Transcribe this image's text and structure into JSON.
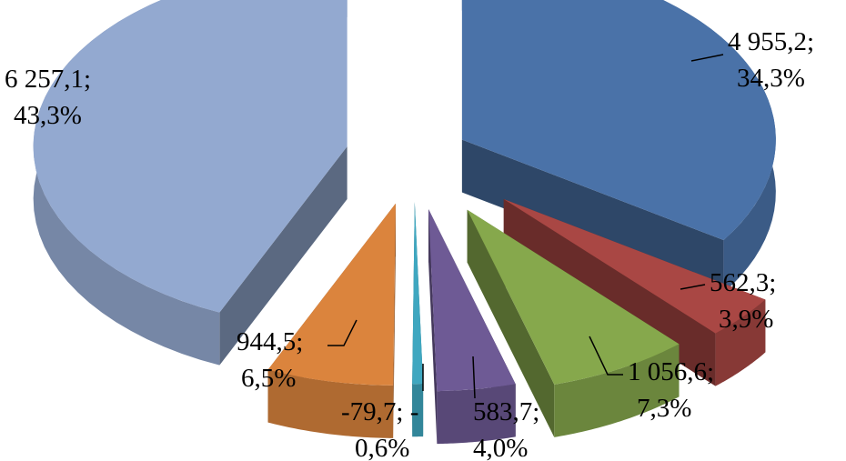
{
  "chart_data": {
    "type": "pie",
    "title": "",
    "legend": "none",
    "slices": [
      {
        "value": 4955.2,
        "percent": 34.3,
        "label_value": "4 955,2;",
        "label_percent": "34,3%",
        "color": "#4A72A8"
      },
      {
        "value": 562.3,
        "percent": 3.9,
        "label_value": "562,3;",
        "label_percent": "3,9%",
        "color": "#A94744"
      },
      {
        "value": 1056.6,
        "percent": 7.3,
        "label_value": "1 056,6;",
        "label_percent": "7,3%",
        "color": "#86A84C"
      },
      {
        "value": 583.7,
        "percent": 4.0,
        "label_value": "583,7;",
        "label_percent": "4,0%",
        "color": "#6E5A95"
      },
      {
        "value": -79.7,
        "percent": -0.6,
        "label_value": "-79,7; -",
        "label_percent": "0,6%",
        "color": "#3FA7C0"
      },
      {
        "value": 944.5,
        "percent": 6.5,
        "label_value": "944,5;",
        "label_percent": "6,5%",
        "color": "#DB843D"
      },
      {
        "value": 6257.1,
        "percent": 43.3,
        "label_value": "6 257,1;",
        "label_percent": "43,3%",
        "color": "#93A9D0"
      }
    ]
  }
}
